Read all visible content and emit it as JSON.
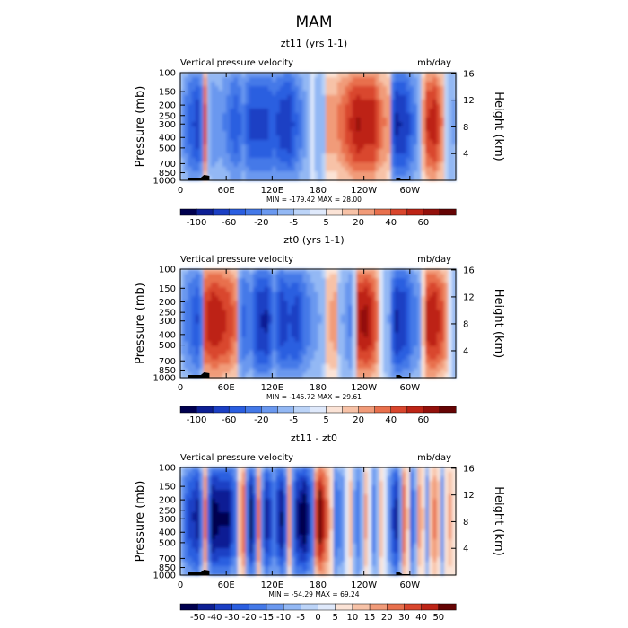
{
  "figure_title": "MAM",
  "chart_data": [
    {
      "type": "heatmap",
      "title": "zt11 (yrs 1-1)",
      "left_string": "Vertical pressure velocity",
      "right_string": "mb/day",
      "ylabel": "Pressure (mb)",
      "y2label": "Height (km)",
      "xticks": [
        "0",
        "60E",
        "120E",
        "180",
        "120W",
        "60W"
      ],
      "xtick_lon": [
        0,
        60,
        120,
        180,
        240,
        300
      ],
      "yticks": [
        100,
        150,
        200,
        250,
        300,
        400,
        500,
        700,
        850,
        1000
      ],
      "y2ticks": [
        4,
        8,
        12,
        16
      ],
      "stats": "MIN = -179.42   MAX =  28.00",
      "colorbar_labels": [
        "-100",
        "-60",
        "-20",
        "-5",
        "5",
        "20",
        "40",
        "60"
      ],
      "colorbar_colors": [
        "#00004f",
        "#0d1f94",
        "#1b3fc4",
        "#2a5ee0",
        "#4479e8",
        "#6a98ef",
        "#93b8f4",
        "#bcd4f8",
        "#dfe9fb",
        "#fbe3d6",
        "#f7c2a7",
        "#f19b79",
        "#e8704d",
        "#d9462d",
        "#bd2416",
        "#93100b",
        "#650404"
      ],
      "data_range": [
        -179.42,
        28.0
      ],
      "field_lon": [
        0,
        10,
        20,
        30,
        40,
        50,
        60,
        70,
        80,
        90,
        100,
        110,
        120,
        130,
        140,
        150,
        160,
        170,
        180,
        190,
        200,
        210,
        220,
        230,
        240,
        250,
        260,
        270,
        280,
        290,
        300,
        310,
        320,
        330,
        340,
        350
      ],
      "field_column_mean": [
        -10,
        -40,
        -70,
        8,
        -15,
        -10,
        -25,
        -50,
        -20,
        -60,
        -60,
        -60,
        -45,
        -70,
        -75,
        -35,
        -10,
        0,
        -5,
        3,
        3,
        6,
        10,
        14,
        12,
        12,
        5,
        3,
        -85,
        -80,
        -35,
        -5,
        10,
        12,
        4,
        -5
      ]
    },
    {
      "type": "heatmap",
      "title": "zt0 (yrs 1-1)",
      "left_string": "Vertical pressure velocity",
      "right_string": "mb/day",
      "ylabel": "Pressure (mb)",
      "y2label": "Height (km)",
      "xticks": [
        "0",
        "60E",
        "120E",
        "180",
        "120W",
        "60W"
      ],
      "xtick_lon": [
        0,
        60,
        120,
        180,
        240,
        300
      ],
      "yticks": [
        100,
        150,
        200,
        250,
        300,
        400,
        500,
        700,
        850,
        1000
      ],
      "y2ticks": [
        4,
        8,
        12,
        16
      ],
      "stats": "MIN = -145.72   MAX =  29.61",
      "colorbar_labels": [
        "-100",
        "-60",
        "-20",
        "-5",
        "5",
        "20",
        "40",
        "60"
      ],
      "colorbar_colors": [
        "#00004f",
        "#0d1f94",
        "#1b3fc4",
        "#2a5ee0",
        "#4479e8",
        "#6a98ef",
        "#93b8f4",
        "#bcd4f8",
        "#dfe9fb",
        "#fbe3d6",
        "#f7c2a7",
        "#f19b79",
        "#e8704d",
        "#d9462d",
        "#bd2416",
        "#93100b",
        "#650404"
      ],
      "data_range": [
        -145.72,
        29.61
      ],
      "field_lon": [
        0,
        10,
        20,
        30,
        40,
        50,
        60,
        70,
        80,
        90,
        100,
        110,
        120,
        130,
        140,
        150,
        160,
        170,
        180,
        190,
        200,
        210,
        220,
        230,
        240,
        250,
        260,
        270,
        280,
        290,
        300,
        310,
        320,
        330,
        340,
        350
      ],
      "field_column_mean": [
        -8,
        -25,
        -45,
        10,
        14,
        12,
        10,
        5,
        -30,
        -20,
        -65,
        -70,
        -20,
        -60,
        -45,
        -55,
        -25,
        -10,
        -5,
        2,
        3,
        -5,
        -15,
        14,
        16,
        10,
        0,
        -5,
        -70,
        -60,
        -25,
        -10,
        12,
        14,
        8,
        0
      ]
    },
    {
      "type": "heatmap",
      "title": "zt11 - zt0",
      "left_string": "Vertical pressure velocity",
      "right_string": "mb/day",
      "ylabel": "Pressure (mb)",
      "y2label": "Height (km)",
      "xticks": [
        "0",
        "60E",
        "120E",
        "180",
        "120W",
        "60W"
      ],
      "xtick_lon": [
        0,
        60,
        120,
        180,
        240,
        300
      ],
      "yticks": [
        100,
        150,
        200,
        250,
        300,
        400,
        500,
        700,
        850,
        1000
      ],
      "y2ticks": [
        4,
        8,
        12,
        16
      ],
      "stats": "MIN = -54.29   MAX =  69.24",
      "colorbar_labels": [
        "-50",
        "-40",
        "-30",
        "-20",
        "-15",
        "-10",
        "-5",
        "0",
        "5",
        "10",
        "15",
        "20",
        "30",
        "40",
        "50"
      ],
      "colorbar_colors": [
        "#00004f",
        "#0d1f94",
        "#1b3fc4",
        "#2a5ee0",
        "#4479e8",
        "#6a98ef",
        "#93b8f4",
        "#bcd4f8",
        "#dfe9fb",
        "#fbe3d6",
        "#f7c2a7",
        "#f19b79",
        "#e8704d",
        "#d9462d",
        "#bd2416",
        "#650404"
      ],
      "data_range": [
        -54.29,
        69.24
      ],
      "field_lon": [
        0,
        10,
        20,
        30,
        40,
        50,
        60,
        70,
        80,
        90,
        100,
        110,
        120,
        130,
        140,
        150,
        160,
        170,
        180,
        190,
        200,
        210,
        220,
        230,
        240,
        250,
        260,
        270,
        280,
        290,
        300,
        310,
        320,
        330,
        340,
        350
      ],
      "field_column_mean": [
        -5,
        -20,
        -30,
        15,
        -40,
        -35,
        -35,
        -10,
        20,
        -40,
        15,
        -30,
        -10,
        -35,
        10,
        -30,
        -45,
        -10,
        60,
        15,
        -10,
        -5,
        5,
        -10,
        8,
        -8,
        5,
        -5,
        -30,
        20,
        -15,
        10,
        -5,
        15,
        -5,
        8
      ]
    }
  ]
}
